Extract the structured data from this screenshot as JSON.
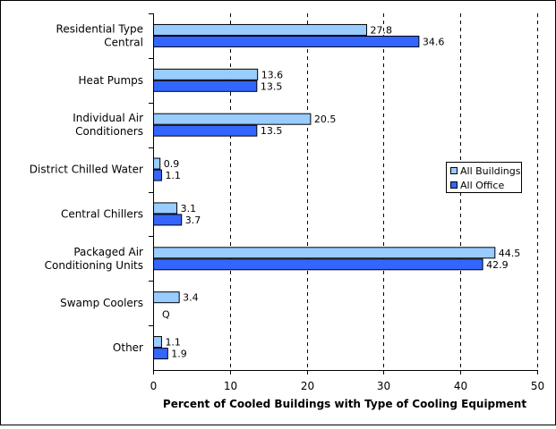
{
  "chart_data": {
    "type": "bar",
    "orientation": "horizontal",
    "categories": [
      [
        "Residential Type",
        "Central"
      ],
      [
        "Heat Pumps"
      ],
      [
        "Individual Air",
        "Conditioners"
      ],
      [
        "District Chilled Water"
      ],
      [
        "Central Chillers"
      ],
      [
        "Packaged Air",
        "Conditioning Units"
      ],
      [
        "Swamp Coolers"
      ],
      [
        "Other"
      ]
    ],
    "series": [
      {
        "name": "All Buildings",
        "color": "#99ccff",
        "values": [
          27.8,
          13.6,
          20.5,
          0.9,
          3.1,
          44.5,
          3.4,
          1.1
        ],
        "labels": [
          "27.8",
          "13.6",
          "20.5",
          "0.9",
          "3.1",
          "44.5",
          "3.4",
          "1.1"
        ]
      },
      {
        "name": "All Office",
        "color": "#3366ff",
        "values": [
          34.6,
          13.5,
          13.5,
          1.1,
          3.7,
          42.9,
          null,
          1.9
        ],
        "labels": [
          "34.6",
          "13.5",
          "13.5",
          "1.1",
          "3.7",
          "42.9",
          "Q",
          "1.9"
        ]
      }
    ],
    "xlabel": "Percent of Cooled Buildings with Type of Cooling Equipment",
    "xlim": [
      0,
      50
    ],
    "xticks": [
      0,
      10,
      20,
      30,
      40,
      50
    ],
    "grid": "vertical-dashed",
    "legend": "right",
    "colors": {
      "frame": "#000000",
      "bar_outline": "#000000",
      "background": "#ffffff"
    }
  }
}
